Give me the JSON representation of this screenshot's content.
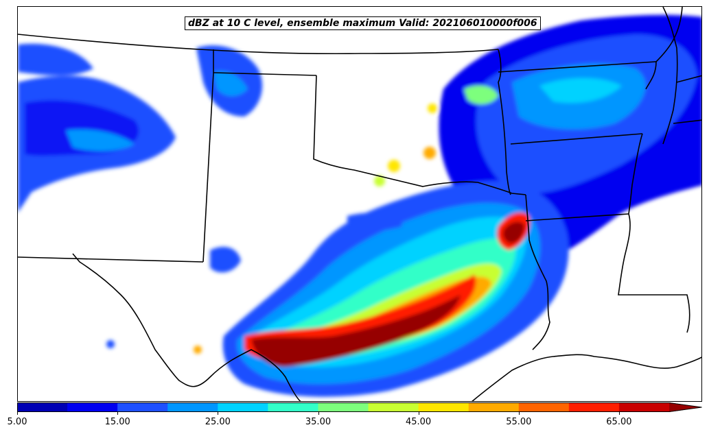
{
  "title": "dBZ at 10 C level, ensemble maximum Valid: 202106010000f006",
  "colorbar": {
    "tick_labels": [
      "5.00",
      "15.00",
      "25.00",
      "35.00",
      "45.00",
      "55.00",
      "65.00"
    ],
    "min": 5,
    "max": 70,
    "step": 5,
    "extend": "max",
    "colors": [
      "#0000b4",
      "#0000f0",
      "#1e50ff",
      "#0096ff",
      "#00d2ff",
      "#32ffc8",
      "#7dff7d",
      "#c8ff32",
      "#ffe600",
      "#ffaa00",
      "#ff6400",
      "#ff1e00",
      "#c80000",
      "#960000"
    ]
  }
}
